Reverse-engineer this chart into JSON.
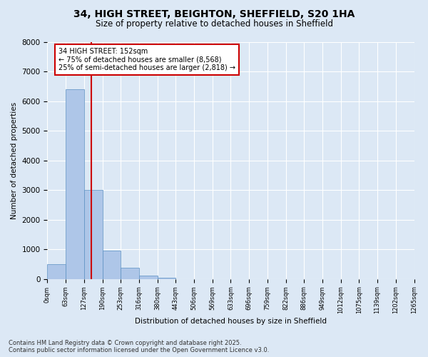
{
  "title_line1": "34, HIGH STREET, BEIGHTON, SHEFFIELD, S20 1HA",
  "title_line2": "Size of property relative to detached houses in Sheffield",
  "xlabel": "Distribution of detached houses by size in Sheffield",
  "ylabel": "Number of detached properties",
  "bin_labels": [
    "0sqm",
    "63sqm",
    "127sqm",
    "190sqm",
    "253sqm",
    "316sqm",
    "380sqm",
    "443sqm",
    "506sqm",
    "569sqm",
    "633sqm",
    "696sqm",
    "759sqm",
    "822sqm",
    "886sqm",
    "949sqm",
    "1012sqm",
    "1075sqm",
    "1139sqm",
    "1202sqm",
    "1265sqm"
  ],
  "bar_heights": [
    500,
    6400,
    3000,
    950,
    380,
    120,
    30,
    5,
    0,
    0,
    0,
    0,
    0,
    0,
    0,
    0,
    0,
    0,
    0,
    0
  ],
  "bar_color": "#aec6e8",
  "bar_edge_color": "#5a8fc2",
  "ylim": [
    0,
    8000
  ],
  "yticks": [
    0,
    1000,
    2000,
    3000,
    4000,
    5000,
    6000,
    7000,
    8000
  ],
  "property_size": 152,
  "vline_color": "#cc0000",
  "annotation_title": "34 HIGH STREET: 152sqm",
  "annotation_line1": "← 75% of detached houses are smaller (8,568)",
  "annotation_line2": "25% of semi-detached houses are larger (2,818) →",
  "annotation_box_color": "#ffffff",
  "annotation_box_edge": "#cc0000",
  "bg_color": "#dce8f5",
  "grid_color": "#ffffff",
  "footer_line1": "Contains HM Land Registry data © Crown copyright and database right 2025.",
  "footer_line2": "Contains public sector information licensed under the Open Government Licence v3.0.",
  "bin_width": 63
}
